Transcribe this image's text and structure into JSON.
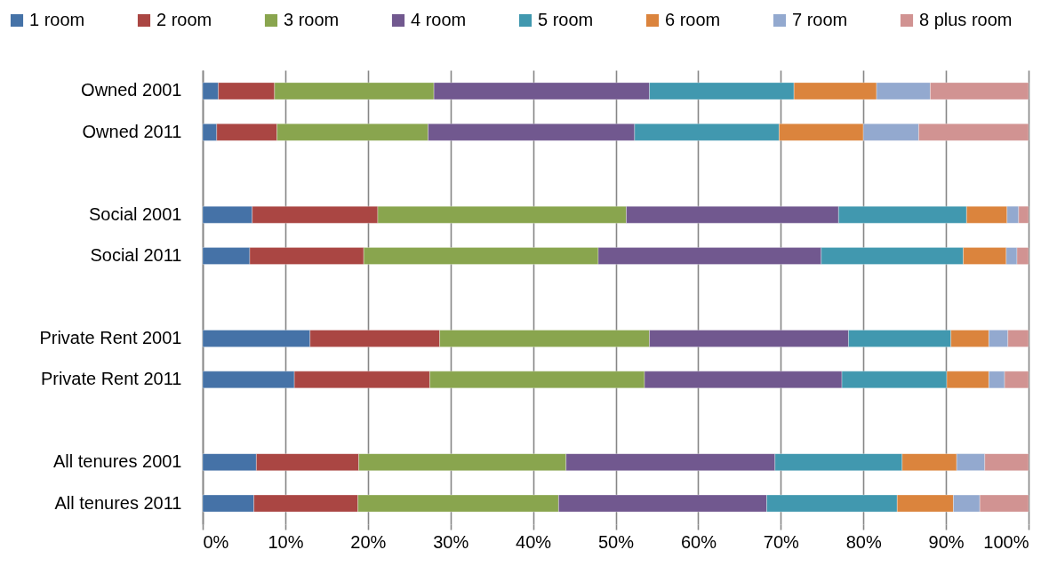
{
  "chart_data": {
    "type": "bar",
    "orientation": "horizontal",
    "stacked": true,
    "categories": [
      "Owned 2001",
      "Owned 2011",
      null,
      "Social 2001",
      "Social 2011",
      null,
      "Private Rent 2001",
      "Private Rent 2011",
      null,
      "All tenures 2001",
      "All tenures 2011"
    ],
    "series": [
      {
        "name": "1 room",
        "color": "#4572a7",
        "values": [
          1.9,
          1.7,
          null,
          6.0,
          5.7,
          null,
          13.0,
          11.1,
          null,
          6.5,
          6.2
        ]
      },
      {
        "name": "2 room",
        "color": "#aa4643",
        "values": [
          6.8,
          7.3,
          null,
          15.2,
          13.8,
          null,
          15.7,
          16.4,
          null,
          12.4,
          12.6
        ]
      },
      {
        "name": "3 room",
        "color": "#89a54e",
        "values": [
          19.3,
          18.3,
          null,
          30.1,
          28.4,
          null,
          25.4,
          26.0,
          null,
          25.1,
          24.3
        ]
      },
      {
        "name": "4 room",
        "color": "#71588f",
        "values": [
          26.1,
          25.0,
          null,
          25.7,
          27.0,
          null,
          24.1,
          23.9,
          null,
          25.3,
          25.2
        ]
      },
      {
        "name": "5 room",
        "color": "#4198af",
        "values": [
          17.5,
          17.5,
          null,
          15.5,
          17.2,
          null,
          12.4,
          12.7,
          null,
          15.4,
          15.8
        ]
      },
      {
        "name": "6 room",
        "color": "#db843d",
        "values": [
          10.0,
          10.2,
          null,
          4.9,
          5.2,
          null,
          4.6,
          5.1,
          null,
          6.6,
          6.8
        ]
      },
      {
        "name": "7 room",
        "color": "#93a9cf",
        "values": [
          6.5,
          6.7,
          null,
          1.4,
          1.3,
          null,
          2.3,
          1.9,
          null,
          3.4,
          3.2
        ]
      },
      {
        "name": "8 plus room",
        "color": "#d19392",
        "values": [
          11.9,
          13.3,
          null,
          1.2,
          1.4,
          null,
          2.5,
          2.9,
          null,
          5.3,
          5.9
        ]
      }
    ],
    "xlim": [
      0,
      100
    ],
    "xticks": [
      {
        "value": 0,
        "label": "0%"
      },
      {
        "value": 10,
        "label": "10%"
      },
      {
        "value": 20,
        "label": "20%"
      },
      {
        "value": 30,
        "label": "30%"
      },
      {
        "value": 40,
        "label": "40%"
      },
      {
        "value": 50,
        "label": "50%"
      },
      {
        "value": 60,
        "label": "60%"
      },
      {
        "value": 70,
        "label": "70%"
      },
      {
        "value": 80,
        "label": "80%"
      },
      {
        "value": 90,
        "label": "90%"
      },
      {
        "value": 100,
        "label": "100%"
      }
    ],
    "grid": "x",
    "legend": "top"
  }
}
